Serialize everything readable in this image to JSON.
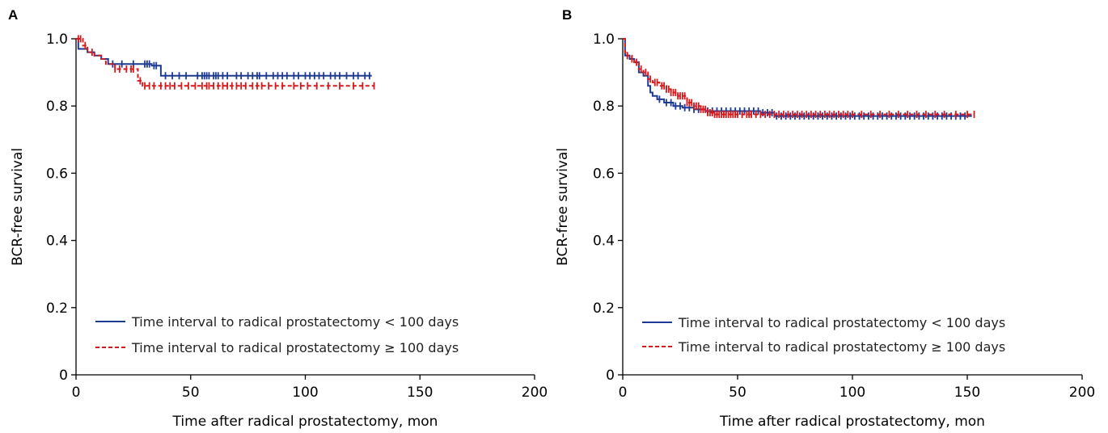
{
  "chart_data": [
    {
      "panel": "A",
      "type": "line",
      "title": "",
      "xlabel": "Time after radical prostatectomy, mon",
      "ylabel": "BCR-free survival",
      "xlim": [
        0,
        200
      ],
      "ylim": [
        0,
        1.0
      ],
      "xticks": [
        0,
        50,
        100,
        150,
        200
      ],
      "yticks": [
        0,
        0.2,
        0.4,
        0.6,
        0.8,
        1.0
      ],
      "ytick_labels": [
        "0",
        "0.2",
        "0.4",
        "0.6",
        "0.8",
        "1.0"
      ],
      "legend_position": "lower-left",
      "series": [
        {
          "name": "Time interval to radical prostatectomy < 100 days",
          "color": "#1f3a93",
          "dash": "solid",
          "steps": [
            [
              0,
              1.0
            ],
            [
              1,
              0.97
            ],
            [
              5,
              0.96
            ],
            [
              8,
              0.95
            ],
            [
              11,
              0.94
            ],
            [
              14,
              0.925
            ],
            [
              33,
              0.92
            ],
            [
              37,
              0.89
            ],
            [
              129,
              0.89
            ]
          ],
          "censors": [
            16,
            20,
            25,
            30,
            31,
            32,
            34,
            35,
            39,
            42,
            45,
            48,
            53,
            55,
            56,
            57,
            58,
            60,
            61,
            62,
            64,
            66,
            70,
            72,
            75,
            77,
            79,
            80,
            83,
            86,
            88,
            90,
            92,
            95,
            97,
            100,
            102,
            104,
            106,
            108,
            111,
            113,
            115,
            118,
            121,
            123,
            126,
            128
          ]
        },
        {
          "name": "Time interval to radical prostatectomy ≥ 100 days",
          "color": "#d7191c",
          "dash": "dashed",
          "steps": [
            [
              0,
              1.0
            ],
            [
              3,
              0.98
            ],
            [
              5,
              0.96
            ],
            [
              8,
              0.95
            ],
            [
              11,
              0.94
            ],
            [
              13,
              0.925
            ],
            [
              17,
              0.91
            ],
            [
              27,
              0.875
            ],
            [
              29,
              0.86
            ],
            [
              130,
              0.86
            ]
          ],
          "censors": [
            1,
            2,
            4,
            7,
            17,
            19,
            22,
            24,
            25,
            28,
            30,
            32,
            34,
            37,
            39,
            41,
            43,
            46,
            49,
            52,
            55,
            57,
            58,
            60,
            62,
            64,
            66,
            68,
            70,
            72,
            74,
            77,
            79,
            81,
            84,
            87,
            90,
            95,
            98,
            101,
            105,
            110,
            115,
            121,
            125,
            130
          ]
        }
      ]
    },
    {
      "panel": "B",
      "type": "line",
      "title": "",
      "xlabel": "Time after radical prostatectomy, mon",
      "ylabel": "BCR-free survival",
      "xlim": [
        0,
        200
      ],
      "ylim": [
        0,
        1.0
      ],
      "xticks": [
        0,
        50,
        100,
        150,
        200
      ],
      "yticks": [
        0,
        0.2,
        0.4,
        0.6,
        0.8,
        1.0
      ],
      "ytick_labels": [
        "0",
        "0.2",
        "0.4",
        "0.6",
        "0.8",
        "1.0"
      ],
      "legend_position": "lower-left",
      "series": [
        {
          "name": "Time interval to radical prostatectomy < 100 days",
          "color": "#1f3a93",
          "dash": "solid",
          "steps": [
            [
              0,
              1.0
            ],
            [
              1,
              0.95
            ],
            [
              3,
              0.94
            ],
            [
              5,
              0.93
            ],
            [
              7,
              0.9
            ],
            [
              9,
              0.89
            ],
            [
              11,
              0.86
            ],
            [
              12,
              0.84
            ],
            [
              13,
              0.83
            ],
            [
              15,
              0.82
            ],
            [
              18,
              0.81
            ],
            [
              22,
              0.8
            ],
            [
              26,
              0.795
            ],
            [
              31,
              0.79
            ],
            [
              36,
              0.785
            ],
            [
              60,
              0.78
            ],
            [
              66,
              0.77
            ],
            [
              152,
              0.77
            ]
          ],
          "censors": [
            16,
            19,
            21,
            23,
            25,
            27,
            29,
            31,
            33,
            35,
            37,
            39,
            41,
            43,
            45,
            47,
            49,
            51,
            53,
            55,
            57,
            59,
            61,
            63,
            65,
            67,
            69,
            71,
            73,
            75,
            77,
            79,
            81,
            83,
            85,
            87,
            89,
            91,
            93,
            95,
            97,
            99,
            101,
            103,
            105,
            107,
            109,
            111,
            113,
            115,
            117,
            119,
            121,
            123,
            125,
            127,
            129,
            131,
            133,
            135,
            137,
            139,
            141,
            143,
            145,
            147,
            149
          ]
        },
        {
          "name": "Time interval to radical prostatectomy ≥ 100 days",
          "color": "#d7191c",
          "dash": "dashed",
          "steps": [
            [
              0,
              1.0
            ],
            [
              1,
              0.96
            ],
            [
              2,
              0.95
            ],
            [
              4,
              0.94
            ],
            [
              5,
              0.93
            ],
            [
              7,
              0.91
            ],
            [
              9,
              0.9
            ],
            [
              11,
              0.88
            ],
            [
              13,
              0.87
            ],
            [
              16,
              0.86
            ],
            [
              19,
              0.85
            ],
            [
              21,
              0.84
            ],
            [
              24,
              0.83
            ],
            [
              28,
              0.81
            ],
            [
              31,
              0.8
            ],
            [
              34,
              0.79
            ],
            [
              37,
              0.78
            ],
            [
              40,
              0.775
            ],
            [
              153,
              0.775
            ]
          ],
          "censors": [
            2,
            4,
            6,
            8,
            10,
            12,
            14,
            15,
            17,
            18,
            19,
            20,
            21,
            22,
            23,
            24,
            25,
            26,
            27,
            28,
            29,
            30,
            31,
            32,
            33,
            34,
            35,
            36,
            37,
            38,
            39,
            40,
            41,
            42,
            43,
            44,
            45,
            46,
            47,
            48,
            49,
            50,
            52,
            54,
            55,
            56,
            58,
            60,
            62,
            64,
            66,
            68,
            70,
            72,
            74,
            76,
            78,
            80,
            82,
            84,
            86,
            88,
            90,
            92,
            94,
            96,
            98,
            100,
            104,
            108,
            112,
            116,
            120,
            124,
            128,
            132,
            136,
            140,
            145,
            150,
            153
          ]
        }
      ]
    }
  ]
}
